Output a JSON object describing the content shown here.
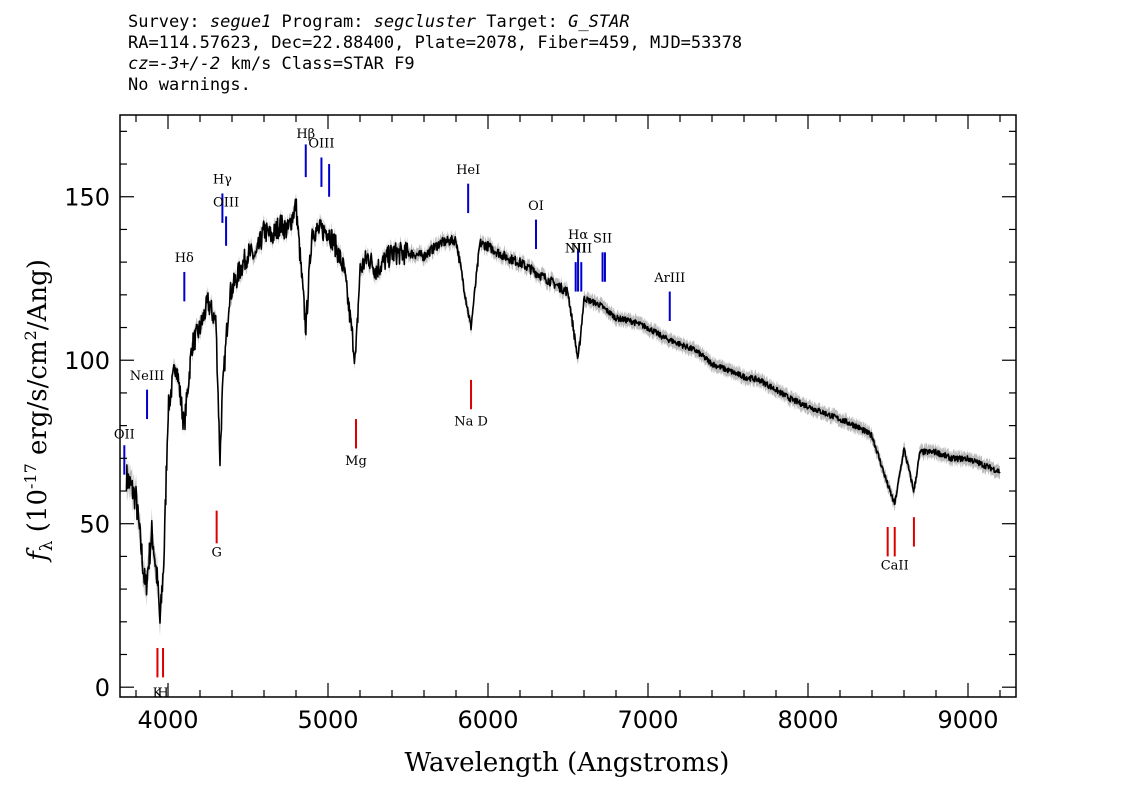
{
  "header": {
    "survey_label": "Survey: ",
    "survey": "segue1",
    "program_label": " Program: ",
    "program": "segcluster",
    "target_label": " Target: ",
    "target": "G_STAR",
    "line2": "RA=114.57623, Dec=22.88400, Plate=2078, Fiber=459, MJD=53378",
    "cz_label": "cz=",
    "cz_value": "-3+/-2",
    "cz_rest": " km/s Class=STAR F9",
    "line4": "No warnings."
  },
  "chart_data": {
    "type": "line",
    "xlabel": "Wavelength (Angstroms)",
    "ylabel_parts": {
      "f": "f",
      "sub": "λ",
      "open": " (10",
      "exp1": "-17",
      "mid": " erg/s/cm",
      "exp2": "2",
      "close": "/Ang)"
    },
    "xlim": [
      3700,
      9300
    ],
    "ylim": [
      -3,
      175
    ],
    "x_ticks": [
      4000,
      5000,
      6000,
      7000,
      8000,
      9000
    ],
    "x_tick_labels": [
      "4000",
      "5000",
      "6000",
      "7000",
      "8000",
      "9000"
    ],
    "y_ticks": [
      0,
      50,
      100,
      150
    ],
    "y_tick_labels": [
      "0",
      "50",
      "100",
      "150"
    ],
    "grid": false,
    "line_color": "#000000",
    "error_color": "#bbbbbb",
    "emission_color": "#0000cc",
    "absorption_color": "#dd0000",
    "spectrum_envelope": [
      [
        3740,
        65
      ],
      [
        3800,
        58
      ],
      [
        3860,
        30
      ],
      [
        3900,
        48
      ],
      [
        3935,
        32
      ],
      [
        3950,
        20
      ],
      [
        3975,
        40
      ],
      [
        4000,
        85
      ],
      [
        4050,
        100
      ],
      [
        4101,
        80
      ],
      [
        4150,
        105
      ],
      [
        4200,
        110
      ],
      [
        4250,
        118
      ],
      [
        4300,
        112
      ],
      [
        4325,
        70
      ],
      [
        4340,
        90
      ],
      [
        4383,
        120
      ],
      [
        4450,
        128
      ],
      [
        4500,
        133
      ],
      [
        4550,
        132
      ],
      [
        4600,
        140
      ],
      [
        4650,
        138
      ],
      [
        4700,
        142
      ],
      [
        4750,
        140
      ],
      [
        4800,
        148
      ],
      [
        4861,
        110
      ],
      [
        4900,
        140
      ],
      [
        4950,
        140
      ],
      [
        5000,
        140
      ],
      [
        5050,
        135
      ],
      [
        5100,
        128
      ],
      [
        5172,
        100
      ],
      [
        5200,
        128
      ],
      [
        5250,
        132
      ],
      [
        5300,
        128
      ],
      [
        5400,
        133
      ],
      [
        5500,
        133
      ],
      [
        5600,
        132
      ],
      [
        5700,
        136
      ],
      [
        5800,
        137
      ],
      [
        5893,
        110
      ],
      [
        5950,
        136
      ],
      [
        6000,
        135
      ],
      [
        6100,
        132
      ],
      [
        6200,
        130
      ],
      [
        6300,
        127
      ],
      [
        6400,
        124
      ],
      [
        6500,
        121
      ],
      [
        6563,
        100
      ],
      [
        6600,
        119
      ],
      [
        6700,
        117
      ],
      [
        6800,
        113
      ],
      [
        6900,
        112
      ],
      [
        7000,
        110
      ],
      [
        7100,
        107
      ],
      [
        7200,
        105
      ],
      [
        7300,
        103
      ],
      [
        7400,
        99
      ],
      [
        7500,
        97
      ],
      [
        7600,
        95
      ],
      [
        7700,
        94
      ],
      [
        7800,
        91
      ],
      [
        7900,
        88
      ],
      [
        8000,
        86
      ],
      [
        8100,
        84
      ],
      [
        8200,
        82
      ],
      [
        8300,
        80
      ],
      [
        8400,
        77
      ],
      [
        8498,
        62
      ],
      [
        8542,
        56
      ],
      [
        8600,
        73
      ],
      [
        8662,
        60
      ],
      [
        8700,
        72
      ],
      [
        8800,
        72
      ],
      [
        8900,
        70
      ],
      [
        9000,
        70
      ],
      [
        9100,
        68
      ],
      [
        9200,
        66
      ]
    ],
    "lines": [
      {
        "name": "OII",
        "wave": 3727,
        "kind": "emission",
        "y0": 65,
        "y1": 74,
        "label_y": 76
      },
      {
        "name": "NeIII",
        "wave": 3869,
        "kind": "emission",
        "y0": 82,
        "y1": 91,
        "label_y": 94
      },
      {
        "name": "Hδ",
        "wave": 4102,
        "kind": "emission",
        "y0": 118,
        "y1": 127,
        "label_y": 130
      },
      {
        "name": "Hγ",
        "wave": 4340,
        "kind": "emission",
        "y0": 142,
        "y1": 151,
        "label_y": 154
      },
      {
        "name": "OIII",
        "wave": 4363,
        "kind": "emission",
        "y0": 135,
        "y1": 144,
        "label_y": 147
      },
      {
        "name": "Hβ",
        "wave": 4861,
        "kind": "emission",
        "y0": 156,
        "y1": 166,
        "label_y": 168
      },
      {
        "name": "OIII",
        "wave": 4959,
        "kind": "emission",
        "y0": 153,
        "y1": 162,
        "label_y": 165
      },
      {
        "name": "",
        "wave": 5007,
        "kind": "emission",
        "y0": 150,
        "y1": 160,
        "label_y": 0
      },
      {
        "name": "HeI",
        "wave": 5876,
        "kind": "emission",
        "y0": 145,
        "y1": 154,
        "label_y": 157
      },
      {
        "name": "OI",
        "wave": 6300,
        "kind": "emission",
        "y0": 134,
        "y1": 143,
        "label_y": 146
      },
      {
        "name": "NII",
        "wave": 6548,
        "kind": "emission",
        "y0": 121,
        "y1": 130,
        "label_y": 133
      },
      {
        "name": "Hα",
        "wave": 6563,
        "kind": "emission",
        "y0": 121,
        "y1": 134,
        "label_y": 137
      },
      {
        "name": "NII",
        "wave": 6583,
        "kind": "emission",
        "y0": 121,
        "y1": 130,
        "label_y": 133
      },
      {
        "name": "SII",
        "wave": 6716,
        "kind": "emission",
        "y0": 124,
        "y1": 133,
        "label_y": 136
      },
      {
        "name": "",
        "wave": 6731,
        "kind": "emission",
        "y0": 124,
        "y1": 133,
        "label_y": 0
      },
      {
        "name": "ArIII",
        "wave": 7136,
        "kind": "emission",
        "y0": 112,
        "y1": 121,
        "label_y": 124
      },
      {
        "name": "K",
        "wave": 3934,
        "kind": "absorption",
        "y0": 3,
        "y1": 12,
        "label_y": -3
      },
      {
        "name": "H",
        "wave": 3969,
        "kind": "absorption",
        "y0": 3,
        "y1": 12,
        "label_y": -3
      },
      {
        "name": "G",
        "wave": 4304,
        "kind": "absorption",
        "y0": 44,
        "y1": 54,
        "label_y": 40
      },
      {
        "name": "Mg",
        "wave": 5175,
        "kind": "absorption",
        "y0": 73,
        "y1": 82,
        "label_y": 68
      },
      {
        "name": "Na D",
        "wave": 5894,
        "kind": "absorption",
        "y0": 85,
        "y1": 94,
        "label_y": 80
      },
      {
        "name": "",
        "wave": 8498,
        "kind": "absorption",
        "y0": 40,
        "y1": 49,
        "label_y": 0
      },
      {
        "name": "CaII",
        "wave": 8542,
        "kind": "absorption",
        "y0": 40,
        "y1": 49,
        "label_y": 36
      },
      {
        "name": "",
        "wave": 8662,
        "kind": "absorption",
        "y0": 43,
        "y1": 52,
        "label_y": 0
      }
    ]
  }
}
